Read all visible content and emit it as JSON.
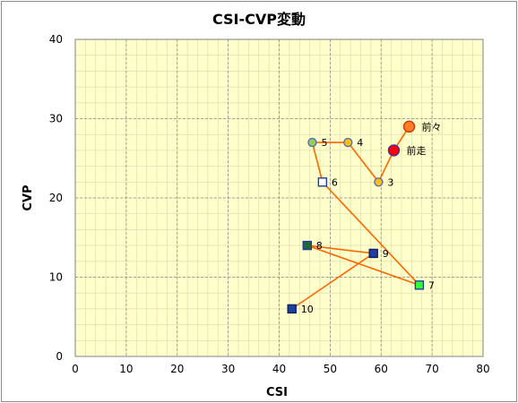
{
  "chart_data": {
    "type": "scatter",
    "title": "CSI-CVP変動",
    "xlabel": "CSI",
    "ylabel": "CVP",
    "xlim": [
      0,
      80
    ],
    "ylim": [
      0,
      40
    ],
    "xticks": [
      0,
      10,
      20,
      30,
      40,
      50,
      60,
      70,
      80
    ],
    "yticks": [
      0,
      10,
      20,
      30,
      40
    ],
    "grid": true,
    "colors": {
      "plot_bg": "#ffffcc",
      "line": "#ff6600",
      "grid_major": "#8c8c8c",
      "grid_minor": "#d9d9a0"
    },
    "points": [
      {
        "label": "前々",
        "x": 65.5,
        "y": 29,
        "marker": "circle",
        "fill": "#ff7f27",
        "stroke": "#cc3300"
      },
      {
        "label": "前走",
        "x": 62.5,
        "y": 26,
        "marker": "circle",
        "fill": "#ff0000",
        "stroke": "#4a2a9a"
      },
      {
        "label": "3",
        "x": 59.5,
        "y": 22,
        "marker": "circle",
        "fill": "#ffc000",
        "stroke": "#5b6bb0"
      },
      {
        "label": "4",
        "x": 53.5,
        "y": 27,
        "marker": "circle",
        "fill": "#ffc000",
        "stroke": "#5b6bb0"
      },
      {
        "label": "5",
        "x": 46.5,
        "y": 27,
        "marker": "circle",
        "fill": "#92d050",
        "stroke": "#5b6bb0"
      },
      {
        "label": "6",
        "x": 48.5,
        "y": 22,
        "marker": "square",
        "fill": "#ffffff",
        "stroke": "#1f3f9f"
      },
      {
        "label": "7",
        "x": 67.5,
        "y": 9,
        "marker": "square",
        "fill": "#33ff33",
        "stroke": "#1f3f9f"
      },
      {
        "label": "8",
        "x": 45.5,
        "y": 14,
        "marker": "square",
        "fill": "#1e6b2e",
        "stroke": "#1f3f9f"
      },
      {
        "label": "9",
        "x": 58.5,
        "y": 13,
        "marker": "square",
        "fill": "#1f3f9f",
        "stroke": "#0d1f66"
      },
      {
        "label": "10",
        "x": 42.5,
        "y": 6,
        "marker": "square",
        "fill": "#1f3f9f",
        "stroke": "#0d1f66"
      }
    ]
  }
}
